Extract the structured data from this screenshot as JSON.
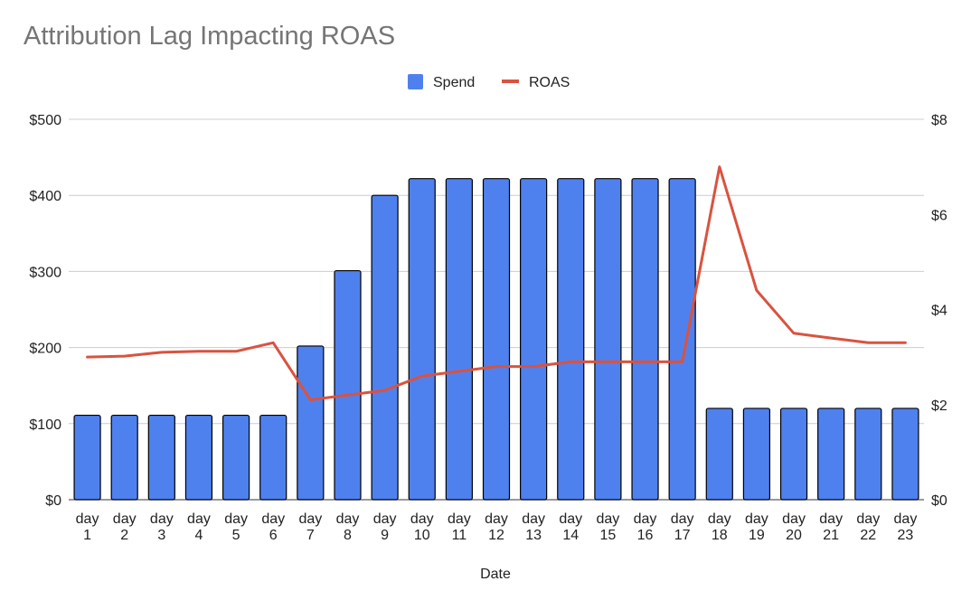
{
  "chart_data": {
    "type": "combo",
    "title": "Attribution Lag Impacting ROAS",
    "xlabel": "Date",
    "categories": [
      "day 1",
      "day 2",
      "day 3",
      "day 4",
      "day 5",
      "day 6",
      "day 7",
      "day 8",
      "day 9",
      "day 10",
      "day 11",
      "day 12",
      "day 13",
      "day 14",
      "day 15",
      "day 16",
      "day 17",
      "day 18",
      "day 19",
      "day 20",
      "day 21",
      "day 22",
      "day 23"
    ],
    "y_left": {
      "ylim": [
        0,
        500
      ],
      "ticks": [
        0,
        100,
        200,
        300,
        400,
        500
      ],
      "tick_labels": [
        "$0",
        "$100",
        "$200",
        "$300",
        "$400",
        "$500"
      ]
    },
    "y_right": {
      "ylim": [
        0,
        8
      ],
      "ticks": [
        0,
        2,
        4,
        6,
        8
      ],
      "tick_labels": [
        "$0",
        "$2",
        "$4",
        "$6",
        "$8"
      ]
    },
    "grid": true,
    "legend": "top-center",
    "series": [
      {
        "name": "Spend",
        "kind": "bar",
        "axis": "left",
        "color": "#4f81ee",
        "values": [
          111,
          111,
          111,
          111,
          111,
          111,
          202,
          301,
          400,
          422,
          422,
          422,
          422,
          422,
          422,
          422,
          422,
          120,
          120,
          120,
          120,
          120,
          120
        ]
      },
      {
        "name": "ROAS",
        "kind": "line",
        "axis": "right",
        "color": "#d9533f",
        "values": [
          3.0,
          3.02,
          3.1,
          3.12,
          3.12,
          3.3,
          2.1,
          2.2,
          2.3,
          2.6,
          2.7,
          2.8,
          2.8,
          2.9,
          2.9,
          2.9,
          2.9,
          7.0,
          4.4,
          3.5,
          3.4,
          3.3,
          3.3
        ]
      }
    ]
  }
}
